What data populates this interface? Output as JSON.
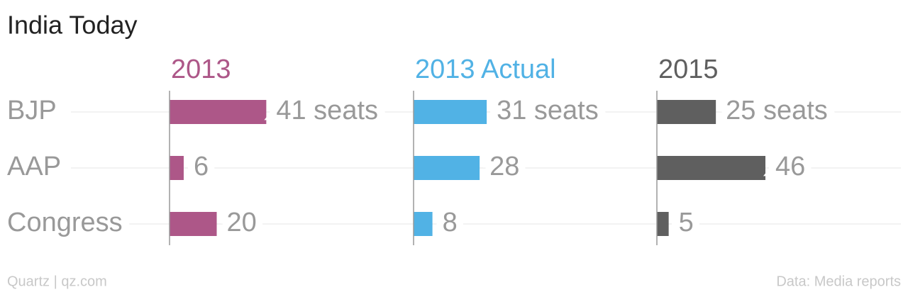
{
  "chart_data": {
    "type": "bar",
    "title": "India Today",
    "categories": [
      "BJP",
      "AAP",
      "Congress"
    ],
    "series": [
      {
        "name": "2013",
        "color": "#ad5788",
        "values": [
          41,
          6,
          20
        ],
        "value_labels": [
          "41 seats",
          "6",
          "20"
        ]
      },
      {
        "name": "2013 Actual",
        "color": "#51b2e5",
        "values": [
          31,
          28,
          8
        ],
        "value_labels": [
          "31 seats",
          "28",
          "8"
        ]
      },
      {
        "name": "2015",
        "color": "#5f5f5f",
        "values": [
          25,
          46,
          5
        ],
        "value_labels": [
          "25 seats",
          "46",
          "5"
        ]
      }
    ],
    "credit": "Quartz | qz.com",
    "source": "Data: Media reports"
  }
}
